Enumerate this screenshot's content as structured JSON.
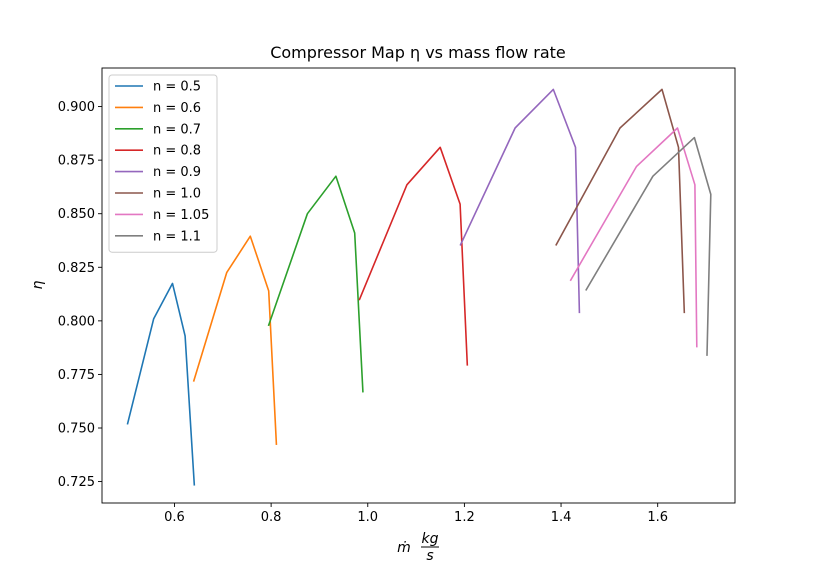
{
  "chart_data": {
    "type": "line",
    "title": "Compressor Map η vs mass flow rate",
    "xlabel": "ṁ  kg/s",
    "xlabel_parts": {
      "symbol": "ṁ",
      "numerator": "kg",
      "denominator": "s"
    },
    "ylabel": "η",
    "xlim": [
      0.45,
      1.76
    ],
    "ylim": [
      0.715,
      0.918
    ],
    "xticks": [
      0.6,
      0.8,
      1.0,
      1.2,
      1.4,
      1.6
    ],
    "xtick_labels": [
      "0.6",
      "0.8",
      "1.0",
      "1.2",
      "1.4",
      "1.6"
    ],
    "yticks": [
      0.725,
      0.75,
      0.775,
      0.8,
      0.825,
      0.85,
      0.875,
      0.9
    ],
    "ytick_labels": [
      "0.725",
      "0.750",
      "0.775",
      "0.800",
      "0.825",
      "0.850",
      "0.875",
      "0.900"
    ],
    "grid": false,
    "legend_position": "top-left",
    "series": [
      {
        "name": "n = 0.5",
        "color": "#1f77b4",
        "x": [
          0.503,
          0.557,
          0.596,
          0.622,
          0.641
        ],
        "y": [
          0.752,
          0.801,
          0.8175,
          0.793,
          0.7235
        ]
      },
      {
        "name": "n = 0.6",
        "color": "#ff7f0e",
        "x": [
          0.64,
          0.708,
          0.757,
          0.795,
          0.811
        ],
        "y": [
          0.772,
          0.8225,
          0.8395,
          0.814,
          0.7425
        ]
      },
      {
        "name": "n = 0.7",
        "color": "#2ca02c",
        "x": [
          0.795,
          0.875,
          0.934,
          0.973,
          0.99
        ],
        "y": [
          0.798,
          0.85,
          0.8675,
          0.841,
          0.767
        ]
      },
      {
        "name": "n = 0.8",
        "color": "#d62728",
        "x": [
          0.983,
          1.081,
          1.15,
          1.191,
          1.206
        ],
        "y": [
          0.81,
          0.8635,
          0.881,
          0.8545,
          0.7795
        ]
      },
      {
        "name": "n = 0.9",
        "color": "#9467bd",
        "x": [
          1.192,
          1.305,
          1.384,
          1.43,
          1.438
        ],
        "y": [
          0.8355,
          0.89,
          0.908,
          0.881,
          0.804
        ]
      },
      {
        "name": "n = 1.0",
        "color": "#8c564b",
        "x": [
          1.39,
          1.522,
          1.609,
          1.643,
          1.655
        ],
        "y": [
          0.8355,
          0.89,
          0.908,
          0.881,
          0.804
        ]
      },
      {
        "name": "n = 1.05",
        "color": "#e377c2",
        "x": [
          1.42,
          1.556,
          1.641,
          1.677,
          1.681
        ],
        "y": [
          0.819,
          0.872,
          0.89,
          0.8635,
          0.788
        ]
      },
      {
        "name": "n = 1.1",
        "color": "#7f7f7f",
        "x": [
          1.452,
          1.59,
          1.676,
          1.71,
          1.702
        ],
        "y": [
          0.8145,
          0.8675,
          0.8855,
          0.859,
          0.784
        ]
      }
    ]
  }
}
